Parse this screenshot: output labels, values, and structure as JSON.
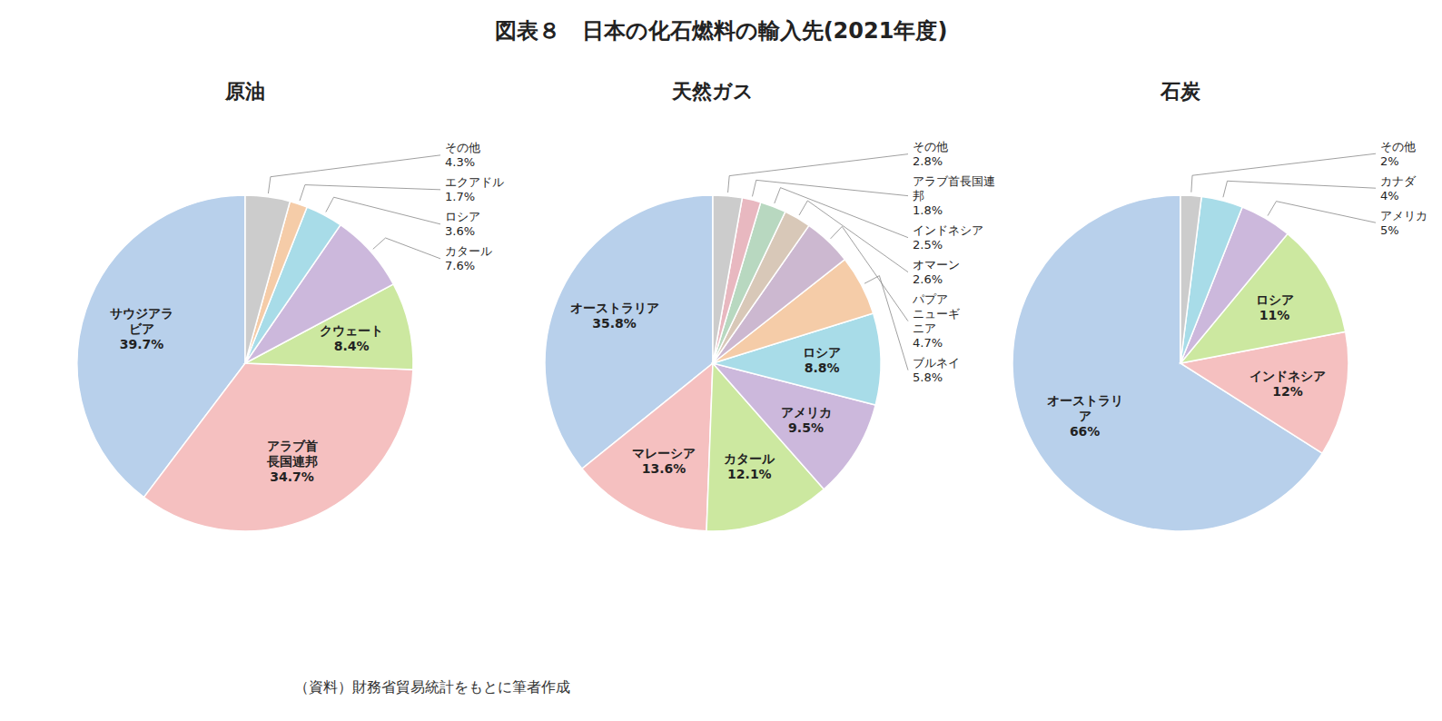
{
  "title": "図表８　日本の化石燃料の輸入先(2021年度)",
  "annotations": [
    "（資料）財務省貿易統計をもとに筆者作成"
  ],
  "chart_data": [
    {
      "type": "pie",
      "title": "原油",
      "categories": [
        "サウジアラ\nビア",
        "アラブ首\n長国連邦",
        "クウェート",
        "カタール",
        "ロシア",
        "エクアドル",
        "その他"
      ],
      "values": [
        39.7,
        34.7,
        8.4,
        7.6,
        3.6,
        1.7,
        4.3
      ],
      "value_labels": [
        "39.7%",
        "34.7%",
        "8.4%",
        "7.6%",
        "3.6%",
        "1.7%",
        "4.3%"
      ],
      "colors": [
        "#b8d0eb",
        "#f5c0c0",
        "#cce8a0",
        "#ccb8dc",
        "#a8dce8",
        "#f5cca8",
        "#cccccc"
      ],
      "data_labels": true
    },
    {
      "type": "pie",
      "title": "天然ガス",
      "categories": [
        "オーストラリア",
        "マレーシア",
        "カタール",
        "アメリカ",
        "ロシア",
        "ブルネイ",
        "パプア\nニューギ\nニア",
        "オマーン",
        "インドネシア",
        "アラブ首長国連\n邦",
        "その他"
      ],
      "values": [
        35.8,
        13.6,
        12.1,
        9.5,
        8.8,
        5.8,
        4.7,
        2.6,
        2.5,
        1.8,
        2.8
      ],
      "value_labels": [
        "35.8%",
        "13.6%",
        "12.1%",
        "9.5%",
        "8.8%",
        "5.8%",
        "4.7%",
        "2.6%",
        "2.5%",
        "1.8%",
        "2.8%"
      ],
      "colors": [
        "#b8d0eb",
        "#f5c0c0",
        "#cce8a0",
        "#ccb8dc",
        "#a8dce8",
        "#f5cca8",
        "#ccb8d0",
        "#d8c8b8",
        "#b8d8c0",
        "#e8b8c0",
        "#cccccc"
      ],
      "data_labels": true
    },
    {
      "type": "pie",
      "title": "石炭",
      "categories": [
        "オーストラリ\nア",
        "インドネシア",
        "ロシア",
        "アメリカ",
        "カナダ",
        "その他"
      ],
      "values": [
        66,
        12,
        11,
        5,
        4,
        2
      ],
      "value_labels": [
        "66%",
        "12%",
        "11%",
        "5%",
        "4%",
        "2%"
      ],
      "colors": [
        "#b8d0eb",
        "#f5c0c0",
        "#cce8a0",
        "#ccb8dc",
        "#a8dce8",
        "#cccccc"
      ],
      "data_labels": true
    }
  ]
}
